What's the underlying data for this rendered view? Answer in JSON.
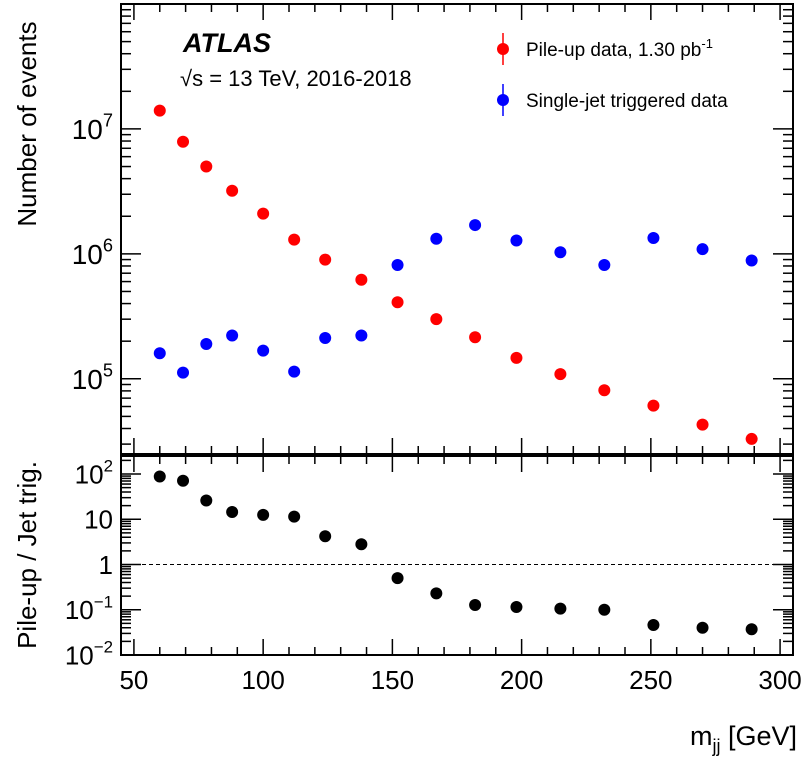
{
  "chart_data": [
    {
      "type": "scatter",
      "panel": "main",
      "experiment": "ATLAS",
      "energy_prefix": "√s",
      "energy_text": " = 13 TeV, 2016-2018",
      "ylabel": "Number of events",
      "yscale": "log",
      "ylim": [
        25000,
        100000000
      ],
      "yticks": [
        {
          "value": 100000,
          "base": "10",
          "exp": "5"
        },
        {
          "value": 1000000,
          "base": "10",
          "exp": "6"
        },
        {
          "value": 10000000,
          "base": "10",
          "exp": "7"
        }
      ],
      "legend": {
        "placement": "top-right",
        "entries": [
          {
            "text": "Pile-up data, 1.30 pb",
            "sup": "-1",
            "color": "#ff0000"
          },
          {
            "text": "Single-jet triggered data",
            "sup": "",
            "color": "#0000ff"
          }
        ]
      },
      "x": [
        60,
        69,
        78,
        88,
        100,
        112,
        124,
        138,
        152,
        167,
        182,
        198,
        215,
        232,
        251,
        270,
        289
      ],
      "series": [
        {
          "name": "Pile-up data, 1.30 pb-1",
          "color": "#ff0000",
          "values": [
            14000000,
            7900000,
            5000000,
            3200000,
            2100000,
            1300000,
            900000,
            620000,
            410000,
            300000,
            215000,
            147000,
            109000,
            81000,
            61000,
            43000,
            33000
          ]
        },
        {
          "name": "Single-jet triggered data",
          "color": "#0000ff",
          "values": [
            160000,
            112000,
            190000,
            222000,
            168000,
            114000,
            212000,
            222000,
            815000,
            1320000,
            1700000,
            1280000,
            1030000,
            815000,
            1340000,
            1090000,
            885000
          ]
        }
      ]
    },
    {
      "type": "scatter",
      "panel": "ratio",
      "ylabel": "Pile-up / Jet trig.",
      "yscale": "log",
      "ylim": [
        0.01,
        250
      ],
      "yticks": [
        {
          "value": 0.01,
          "base": "10",
          "exp": "−2"
        },
        {
          "value": 0.1,
          "base": "10",
          "exp": "−1"
        },
        {
          "value": 1,
          "base": "1",
          "exp": ""
        },
        {
          "value": 10,
          "base": "10",
          "exp": ""
        },
        {
          "value": 100,
          "base": "10",
          "exp": "2"
        }
      ],
      "reference_line": 1,
      "xlabel_main": "m",
      "xlabel_sub": "jj",
      "xlabel_rest": " [GeV]",
      "xlim": [
        45,
        305
      ],
      "xticks": [
        50,
        100,
        150,
        200,
        250,
        300
      ],
      "x": [
        60,
        69,
        78,
        88,
        100,
        112,
        124,
        138,
        152,
        167,
        182,
        198,
        215,
        232,
        251,
        270,
        289
      ],
      "series": [
        {
          "name": "",
          "color": "#000000",
          "values": [
            88,
            71,
            26,
            14.5,
            12.5,
            11.4,
            4.2,
            2.8,
            0.5,
            0.23,
            0.127,
            0.115,
            0.106,
            0.1,
            0.046,
            0.04,
            0.037
          ]
        }
      ]
    }
  ]
}
